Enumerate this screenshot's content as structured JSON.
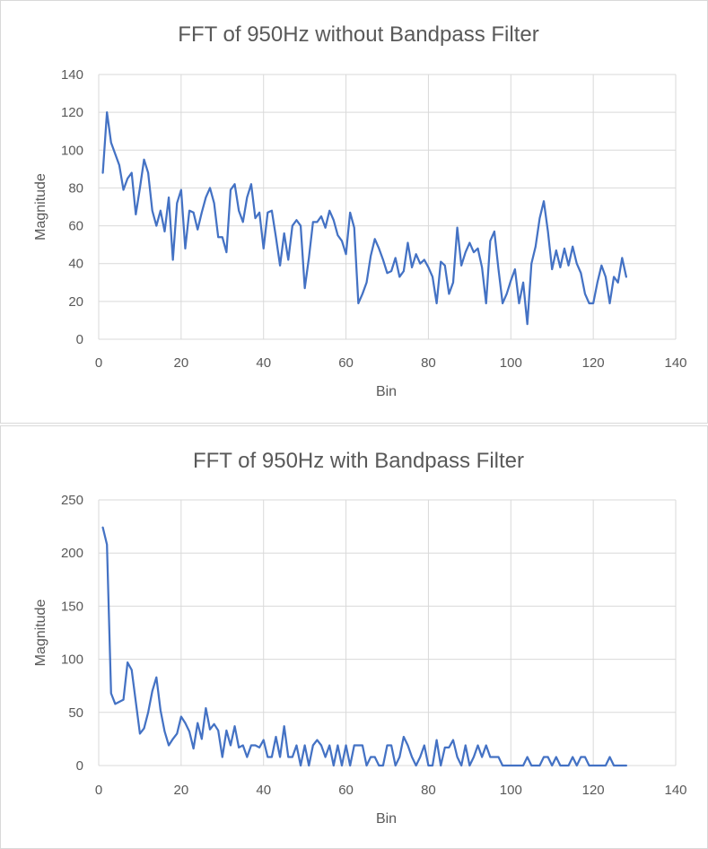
{
  "chart_data": [
    {
      "type": "line",
      "title": "FFT of 950Hz without Bandpass Filter",
      "xlabel": "Bin",
      "ylabel": "Magnitude",
      "xlim": [
        0,
        140
      ],
      "ylim": [
        0,
        140
      ],
      "xticks": [
        0,
        20,
        40,
        60,
        80,
        100,
        120,
        140
      ],
      "yticks": [
        0,
        20,
        40,
        60,
        80,
        100,
        120,
        140
      ],
      "grid": true,
      "legend": "none",
      "color": "#4472c4",
      "series": [
        {
          "x": [
            1,
            2,
            3,
            4,
            5,
            6,
            7,
            8,
            9,
            10,
            11,
            12,
            13,
            14,
            15,
            16,
            17,
            18,
            19,
            20,
            21,
            22,
            23,
            24,
            25,
            26,
            27,
            28,
            29,
            30,
            31,
            32,
            33,
            34,
            35,
            36,
            37,
            38,
            39,
            40,
            41,
            42,
            43,
            44,
            45,
            46,
            47,
            48,
            49,
            50,
            51,
            52,
            53,
            54,
            55,
            56,
            57,
            58,
            59,
            60,
            61,
            62,
            63,
            64,
            65,
            66,
            67,
            68,
            69,
            70,
            71,
            72,
            73,
            74,
            75,
            76,
            77,
            78,
            79,
            80,
            81,
            82,
            83,
            84,
            85,
            86,
            87,
            88,
            89,
            90,
            91,
            92,
            93,
            94,
            95,
            96,
            97,
            98,
            99,
            100,
            101,
            102,
            103,
            104,
            105,
            106,
            107,
            108,
            109,
            110,
            111,
            112,
            113,
            114,
            115,
            116,
            117,
            118,
            119,
            120,
            121,
            122,
            123,
            124,
            125,
            126,
            127,
            128
          ],
          "values": [
            88,
            120,
            104,
            98,
            92,
            79,
            85,
            88,
            66,
            80,
            95,
            88,
            68,
            60,
            68,
            57,
            75,
            42,
            72,
            79,
            48,
            68,
            67,
            58,
            67,
            75,
            80,
            72,
            54,
            54,
            46,
            79,
            82,
            68,
            62,
            75,
            82,
            64,
            67,
            48,
            67,
            68,
            54,
            39,
            56,
            42,
            60,
            63,
            60,
            27,
            43,
            62,
            62,
            65,
            59,
            68,
            63,
            55,
            52,
            45,
            67,
            59,
            19,
            24,
            30,
            44,
            53,
            48,
            42,
            35,
            36,
            43,
            33,
            36,
            51,
            38,
            45,
            40,
            42,
            38,
            33,
            19,
            41,
            39,
            24,
            30,
            59,
            39,
            46,
            51,
            46,
            48,
            38,
            19,
            52,
            57,
            37,
            19,
            24,
            31,
            37,
            19,
            30,
            8,
            40,
            49,
            64,
            73,
            57,
            37,
            47,
            38,
            48,
            39,
            49,
            40,
            35,
            24,
            19,
            19,
            30,
            39,
            33,
            19,
            33,
            30,
            43,
            33
          ]
        }
      ]
    },
    {
      "type": "line",
      "title": "FFT of 950Hz with Bandpass Filter",
      "xlabel": "Bin",
      "ylabel": "Magnitude",
      "xlim": [
        0,
        140
      ],
      "ylim": [
        0,
        250
      ],
      "xticks": [
        0,
        20,
        40,
        60,
        80,
        100,
        120,
        140
      ],
      "yticks": [
        0,
        50,
        100,
        150,
        200,
        250
      ],
      "grid": true,
      "legend": "none",
      "color": "#4472c4",
      "series": [
        {
          "x": [
            1,
            2,
            3,
            4,
            5,
            6,
            7,
            8,
            9,
            10,
            11,
            12,
            13,
            14,
            15,
            16,
            17,
            18,
            19,
            20,
            21,
            22,
            23,
            24,
            25,
            26,
            27,
            28,
            29,
            30,
            31,
            32,
            33,
            34,
            35,
            36,
            37,
            38,
            39,
            40,
            41,
            42,
            43,
            44,
            45,
            46,
            47,
            48,
            49,
            50,
            51,
            52,
            53,
            54,
            55,
            56,
            57,
            58,
            59,
            60,
            61,
            62,
            63,
            64,
            65,
            66,
            67,
            68,
            69,
            70,
            71,
            72,
            73,
            74,
            75,
            76,
            77,
            78,
            79,
            80,
            81,
            82,
            83,
            84,
            85,
            86,
            87,
            88,
            89,
            90,
            91,
            92,
            93,
            94,
            95,
            96,
            97,
            98,
            99,
            100,
            101,
            102,
            103,
            104,
            105,
            106,
            107,
            108,
            109,
            110,
            111,
            112,
            113,
            114,
            115,
            116,
            117,
            118,
            119,
            120,
            121,
            122,
            123,
            124,
            125,
            126,
            127,
            128
          ],
          "values": [
            224,
            208,
            68,
            58,
            60,
            62,
            97,
            90,
            60,
            30,
            35,
            50,
            70,
            83,
            52,
            32,
            19,
            25,
            30,
            46,
            40,
            32,
            16,
            40,
            25,
            54,
            34,
            39,
            33,
            8,
            33,
            19,
            37,
            17,
            19,
            8,
            19,
            19,
            17,
            24,
            8,
            8,
            27,
            8,
            37,
            8,
            8,
            19,
            0,
            19,
            0,
            19,
            24,
            19,
            8,
            19,
            0,
            19,
            0,
            19,
            0,
            19,
            19,
            19,
            0,
            8,
            8,
            0,
            0,
            19,
            19,
            0,
            8,
            27,
            19,
            8,
            0,
            8,
            19,
            0,
            0,
            24,
            0,
            17,
            17,
            24,
            8,
            0,
            19,
            0,
            8,
            19,
            8,
            19,
            8,
            8,
            8,
            0,
            0,
            0,
            0,
            0,
            0,
            8,
            0,
            0,
            0,
            8,
            8,
            0,
            8,
            0,
            0,
            0,
            8,
            0,
            8,
            8,
            0,
            0,
            0,
            0,
            0,
            8,
            0,
            0,
            0,
            0
          ]
        }
      ]
    }
  ]
}
